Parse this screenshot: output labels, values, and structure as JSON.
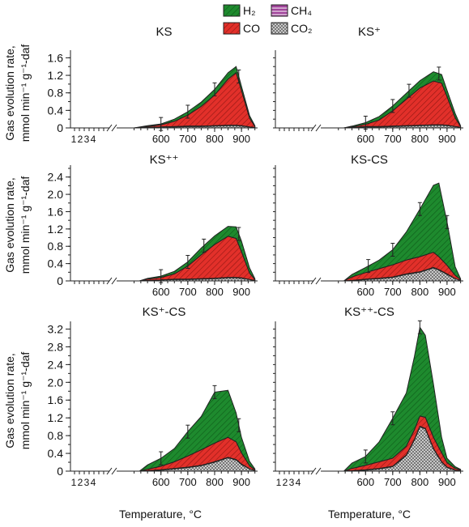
{
  "legend": [
    {
      "label": "H₂",
      "color": "#1e8a2e",
      "pattern": "hatch"
    },
    {
      "label": "CH₄",
      "color": "#a1459b",
      "pattern": "stripes"
    },
    {
      "label": "CO",
      "color": "#e2302a",
      "pattern": "hatch"
    },
    {
      "label": "CO₂",
      "color": "#b8b8b8",
      "pattern": "crosshatch"
    }
  ],
  "ylabel_line1": "Gas evolution rate,",
  "ylabel_line2": "mmol min⁻¹ g⁻¹-daf",
  "xlabel": "Temperature, °C",
  "colors": {
    "H2": "#1e8a2e",
    "CH4": "#a1459b",
    "CO": "#e2302a",
    "CO2": "#b8b8b8",
    "outline": "#222222"
  },
  "chart_data": [
    {
      "type": "area",
      "title": "KS",
      "x": [
        500,
        550,
        600,
        650,
        700,
        750,
        800,
        850,
        880,
        900,
        930,
        950
      ],
      "series": [
        {
          "name": "CO2",
          "values": [
            0,
            0.01,
            0.02,
            0.02,
            0.03,
            0.03,
            0.04,
            0.05,
            0.05,
            0.04,
            0.02,
            0.01
          ]
        },
        {
          "name": "CH4",
          "values": [
            0,
            0,
            0,
            0.01,
            0.01,
            0.01,
            0.01,
            0.01,
            0.01,
            0.01,
            0,
            0
          ]
        },
        {
          "name": "CO",
          "values": [
            0,
            0.02,
            0.05,
            0.12,
            0.25,
            0.45,
            0.7,
            1.05,
            1.2,
            0.8,
            0.2,
            0.02
          ]
        },
        {
          "name": "H2",
          "values": [
            0,
            0.02,
            0.02,
            0.05,
            0.08,
            0.1,
            0.13,
            0.15,
            0.14,
            0.1,
            0.06,
            0.02
          ]
        }
      ],
      "error_x": [
        600,
        700,
        800,
        890
      ],
      "ylim": [
        0,
        1.7
      ],
      "yticks": [
        0,
        0.4,
        0.8,
        1.2,
        1.6
      ],
      "xticks": [
        600,
        700,
        800,
        900
      ],
      "xlim": [
        450,
        960
      ],
      "broken_ticks": [
        "1",
        "2",
        "3",
        "4"
      ]
    },
    {
      "type": "area",
      "title": "KS⁺",
      "x": [
        520,
        550,
        600,
        650,
        700,
        750,
        800,
        850,
        880,
        900,
        930,
        950
      ],
      "series": [
        {
          "name": "CO2",
          "values": [
            0,
            0.01,
            0.02,
            0.02,
            0.03,
            0.04,
            0.05,
            0.06,
            0.06,
            0.05,
            0.03,
            0.01
          ]
        },
        {
          "name": "CH4",
          "values": [
            0,
            0,
            0.01,
            0.01,
            0.01,
            0.01,
            0.01,
            0.01,
            0.01,
            0.01,
            0,
            0
          ]
        },
        {
          "name": "CO",
          "values": [
            0,
            0.01,
            0.05,
            0.15,
            0.35,
            0.6,
            0.85,
            1.0,
            0.95,
            0.65,
            0.2,
            0.02
          ]
        },
        {
          "name": "H2",
          "values": [
            0,
            0.02,
            0.04,
            0.08,
            0.11,
            0.14,
            0.17,
            0.21,
            0.2,
            0.15,
            0.1,
            0.02
          ]
        }
      ],
      "error_x": [
        600,
        700,
        760,
        870
      ],
      "ylim": [
        0,
        1.7
      ],
      "yticks": [],
      "xticks": [
        600,
        700,
        800,
        900
      ],
      "xlim": [
        450,
        960
      ],
      "broken_ticks": []
    },
    {
      "type": "area",
      "title": "KS⁺⁺",
      "x": [
        520,
        550,
        600,
        650,
        700,
        750,
        800,
        850,
        880,
        900,
        930,
        950
      ],
      "series": [
        {
          "name": "CO2",
          "values": [
            0,
            0.01,
            0.02,
            0.03,
            0.03,
            0.04,
            0.05,
            0.07,
            0.07,
            0.06,
            0.03,
            0.01
          ]
        },
        {
          "name": "CH4",
          "values": [
            0,
            0,
            0,
            0.01,
            0.01,
            0.01,
            0.01,
            0.01,
            0.01,
            0.01,
            0,
            0
          ]
        },
        {
          "name": "CO",
          "values": [
            0,
            0.03,
            0.06,
            0.12,
            0.3,
            0.55,
            0.78,
            0.95,
            0.9,
            0.6,
            0.15,
            0.02
          ]
        },
        {
          "name": "H2",
          "values": [
            0,
            0.02,
            0.03,
            0.06,
            0.1,
            0.16,
            0.2,
            0.23,
            0.27,
            0.25,
            0.12,
            0.02
          ]
        }
      ],
      "error_x": [
        600,
        700,
        760,
        890
      ],
      "ylim": [
        0,
        2.6
      ],
      "yticks": [
        0,
        0.4,
        0.8,
        1.2,
        1.6,
        2.0,
        2.4
      ],
      "xticks": [
        600,
        700,
        800,
        900
      ],
      "xlim": [
        450,
        960
      ],
      "broken_ticks": []
    },
    {
      "type": "area",
      "title": "KS-CS",
      "x": [
        520,
        550,
        600,
        650,
        700,
        750,
        800,
        850,
        870,
        900,
        930,
        950
      ],
      "series": [
        {
          "name": "CO2",
          "values": [
            0,
            0.01,
            0.03,
            0.05,
            0.08,
            0.15,
            0.2,
            0.3,
            0.25,
            0.15,
            0.05,
            0.01
          ]
        },
        {
          "name": "CH4",
          "values": [
            0,
            0,
            0.01,
            0.01,
            0.01,
            0.01,
            0.01,
            0.01,
            0.01,
            0.01,
            0,
            0
          ]
        },
        {
          "name": "CO",
          "values": [
            0,
            0.08,
            0.15,
            0.22,
            0.28,
            0.32,
            0.35,
            0.35,
            0.3,
            0.2,
            0.08,
            0.02
          ]
        },
        {
          "name": "H2",
          "values": [
            0,
            0.06,
            0.12,
            0.2,
            0.35,
            0.65,
            1.1,
            1.55,
            1.7,
            1.0,
            0.2,
            0.02
          ]
        }
      ],
      "error_x": [
        610,
        700,
        800,
        900
      ],
      "ylim": [
        0,
        2.6
      ],
      "yticks": [],
      "xticks": [
        600,
        700,
        800,
        900
      ],
      "xlim": [
        450,
        960
      ],
      "broken_ticks": []
    },
    {
      "type": "area",
      "title": "KS⁺-CS",
      "x": [
        520,
        550,
        600,
        650,
        700,
        750,
        800,
        850,
        880,
        900,
        930,
        950
      ],
      "series": [
        {
          "name": "CO2",
          "values": [
            0,
            0.01,
            0.02,
            0.05,
            0.08,
            0.12,
            0.2,
            0.3,
            0.25,
            0.15,
            0.05,
            0.01
          ]
        },
        {
          "name": "CH4",
          "values": [
            0,
            0,
            0.01,
            0.01,
            0.01,
            0.01,
            0.01,
            0.01,
            0.01,
            0.01,
            0,
            0
          ]
        },
        {
          "name": "CO",
          "values": [
            0,
            0.03,
            0.08,
            0.15,
            0.25,
            0.35,
            0.42,
            0.45,
            0.4,
            0.25,
            0.07,
            0.02
          ]
        },
        {
          "name": "H2",
          "values": [
            0,
            0.1,
            0.18,
            0.3,
            0.55,
            0.75,
            1.15,
            1.06,
            0.65,
            0.35,
            0.1,
            0.02
          ]
        }
      ],
      "error_x": [
        600,
        700,
        800,
        890
      ],
      "ylim": [
        0,
        3.3
      ],
      "yticks": [
        0,
        0.4,
        0.8,
        1.2,
        1.6,
        2.0,
        2.4,
        2.8,
        3.2
      ],
      "xticks": [
        600,
        700,
        800,
        900
      ],
      "xlim": [
        450,
        960
      ],
      "broken_ticks": [
        "1",
        "2",
        "3",
        "4"
      ]
    },
    {
      "type": "area",
      "title": "KS⁺⁺-CS",
      "x": [
        520,
        550,
        600,
        650,
        700,
        750,
        780,
        800,
        820,
        850,
        880,
        900,
        930,
        950
      ],
      "series": [
        {
          "name": "CO2",
          "values": [
            0,
            0.01,
            0.02,
            0.05,
            0.1,
            0.35,
            0.7,
            1.0,
            0.95,
            0.5,
            0.2,
            0.08,
            0.02,
            0.01
          ]
        },
        {
          "name": "CH4",
          "values": [
            0,
            0,
            0.01,
            0.01,
            0.01,
            0.01,
            0.01,
            0.01,
            0.01,
            0.01,
            0.01,
            0.01,
            0,
            0
          ]
        },
        {
          "name": "CO",
          "values": [
            0,
            0.05,
            0.1,
            0.15,
            0.18,
            0.2,
            0.22,
            0.23,
            0.25,
            0.25,
            0.2,
            0.1,
            0.04,
            0.02
          ]
        },
        {
          "name": "H2",
          "values": [
            0,
            0.12,
            0.2,
            0.45,
            0.9,
            1.2,
            1.65,
            2.0,
            1.85,
            1.2,
            0.35,
            0.1,
            0.04,
            0.01
          ]
        }
      ],
      "error_x": [
        600,
        700,
        800
      ],
      "ylim": [
        0,
        3.3
      ],
      "yticks": [],
      "xticks": [
        600,
        700,
        800,
        900
      ],
      "xlim": [
        450,
        960
      ],
      "broken_ticks": [
        "1",
        "2",
        "3",
        "4"
      ]
    }
  ]
}
